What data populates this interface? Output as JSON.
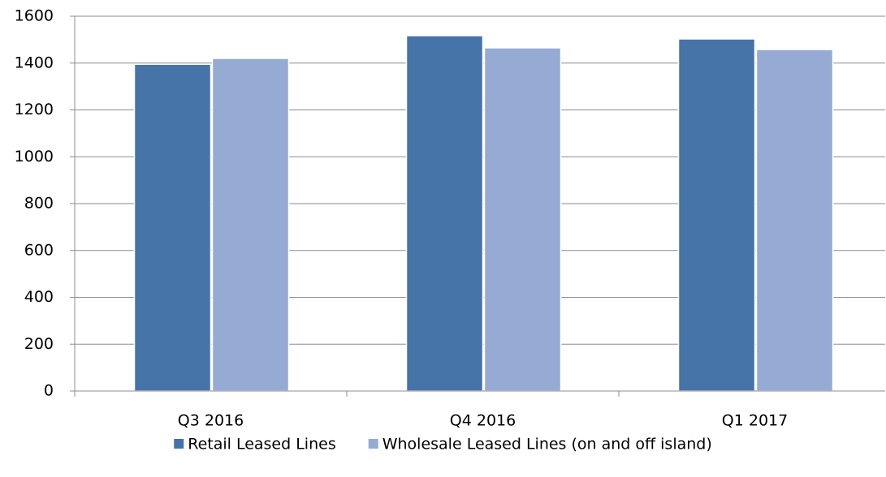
{
  "chart_data": {
    "type": "bar",
    "categories": [
      "Q3 2016",
      "Q4 2016",
      "Q1 2017"
    ],
    "series": [
      {
        "name": "Retail Leased Lines",
        "color": "#4673a8",
        "values": [
          1395,
          1517,
          1503
        ]
      },
      {
        "name": "Wholesale Leased Lines (on and off island)",
        "color": "#95abd3",
        "values": [
          1420,
          1465,
          1458
        ]
      }
    ],
    "ylim": [
      0,
      1600
    ],
    "yticks": [
      0,
      200,
      400,
      600,
      800,
      1000,
      1200,
      1400,
      1600
    ],
    "grid": true,
    "legend": "bottom"
  }
}
